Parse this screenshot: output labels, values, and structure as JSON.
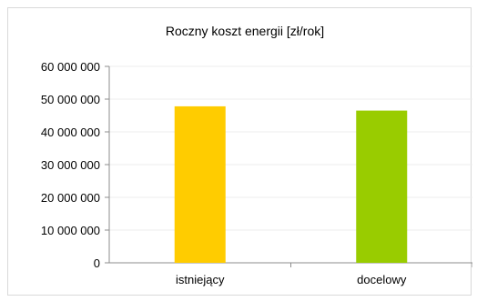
{
  "chart_data": {
    "type": "bar",
    "title": "Roczny koszt energii [zł/rok]",
    "categories": [
      "istniejący",
      "docelowy"
    ],
    "values": [
      47800000,
      46500000
    ],
    "colors": [
      "#ffcc00",
      "#99cc00"
    ],
    "ylim": [
      0,
      60000000
    ],
    "yticks": [
      0,
      10000000,
      20000000,
      30000000,
      40000000,
      50000000,
      60000000
    ],
    "ytick_labels": [
      "0",
      "10 000 000",
      "20 000 000",
      "30 000 000",
      "40 000 000",
      "50 000 000",
      "60 000 000"
    ],
    "grid": true,
    "legend": "none"
  }
}
